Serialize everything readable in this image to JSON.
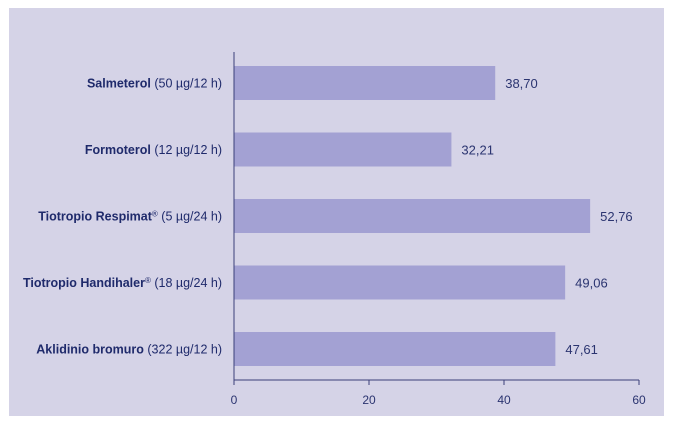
{
  "chart_data": {
    "type": "bar",
    "orientation": "horizontal",
    "categories": [
      {
        "drug": "Salmeterol",
        "sup": "",
        "dose": "(50 µg/12 h)"
      },
      {
        "drug": "Formoterol",
        "sup": "",
        "dose": "(12 µg/12 h)"
      },
      {
        "drug": "Tiotropio Respimat",
        "sup": "®",
        "dose": "(5 µg/24 h)"
      },
      {
        "drug": "Tiotropio Handihaler",
        "sup": "®",
        "dose": "(18 µg/24 h)"
      },
      {
        "drug": "Aklidinio bromuro",
        "sup": "",
        "dose": "(322 µg/12 h)"
      }
    ],
    "values": [
      38.7,
      32.21,
      52.76,
      49.06,
      47.61
    ],
    "value_labels": [
      "38,70",
      "32,21",
      "52,76",
      "49,06",
      "47,61"
    ],
    "xlim": [
      0,
      60
    ],
    "xticks": [
      0,
      20,
      40,
      60
    ],
    "xtick_labels": [
      "0",
      "20",
      "40",
      "60"
    ],
    "grid": false,
    "colors": {
      "background": "#d5d3e7",
      "bar": "#a3a1d3",
      "text": "#1f2a6b",
      "axis": "#3a3f7a"
    }
  }
}
